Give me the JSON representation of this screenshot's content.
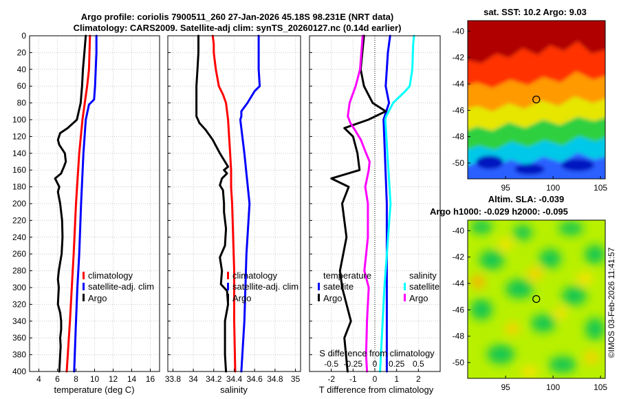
{
  "header": {
    "title_line1": "Argo profile: coriolis 7900511_260 27-Jan-2026 45.18S 98.231E (NRT data)",
    "title_line2": "Climatology: CARS2009. Satellite-adj clim: synTS_20260127.nc (0.14d earlier)"
  },
  "colors": {
    "climatology": "#ff0000",
    "satellite": "#0000ff",
    "argo": "#000000",
    "salinity_satellite": "#00ffff",
    "salinity_argo": "#ff00ff"
  },
  "chart_data": [
    {
      "type": "line",
      "id": "temperature",
      "xlabel": "temperature (deg C)",
      "ylabel": "",
      "xlim": [
        3,
        17
      ],
      "ylim": [
        400,
        0
      ],
      "xticks": [
        "4",
        "6",
        "8",
        "10",
        "12",
        "14",
        "16"
      ],
      "yticks": [
        "0",
        "20",
        "40",
        "60",
        "80",
        "100",
        "120",
        "140",
        "160",
        "180",
        "200",
        "220",
        "240",
        "260",
        "280",
        "300",
        "320",
        "340",
        "360",
        "380",
        "400"
      ],
      "grid": true,
      "legend": [
        "climatology",
        "satellite-adj. clim",
        "Argo"
      ],
      "series": [
        {
          "name": "climatology",
          "color": "#ff0000",
          "depth": [
            0,
            40,
            60,
            80,
            100,
            140,
            200,
            260,
            300,
            340,
            400
          ],
          "values": [
            9.5,
            9.4,
            9.2,
            8.95,
            8.7,
            8.35,
            8.0,
            7.75,
            7.55,
            7.35,
            7.0
          ]
        },
        {
          "name": "satellite-adj. clim",
          "color": "#0000ff",
          "depth": [
            0,
            20,
            60,
            76,
            82,
            100,
            140,
            200,
            260,
            300,
            340,
            400
          ],
          "values": [
            10.2,
            10.2,
            10.05,
            9.95,
            9.4,
            9.05,
            8.8,
            8.55,
            8.35,
            8.15,
            8.0,
            7.8
          ]
        },
        {
          "name": "Argo",
          "color": "#000000",
          "depth": [
            0,
            20,
            40,
            60,
            80,
            100,
            110,
            116,
            124,
            130,
            140,
            150,
            156,
            160,
            164,
            170,
            180,
            186,
            200,
            210,
            220,
            240,
            260,
            270,
            280,
            290,
            300,
            310,
            320,
            330,
            340,
            350,
            360,
            370,
            380,
            390,
            400
          ],
          "values": [
            9.05,
            8.9,
            8.75,
            8.65,
            8.5,
            8.1,
            7.1,
            6.3,
            6.05,
            6.2,
            6.8,
            6.9,
            6.7,
            6.55,
            6.4,
            5.75,
            6.2,
            6.05,
            6.3,
            6.4,
            6.5,
            6.55,
            6.45,
            6.3,
            6.15,
            6.05,
            6.15,
            6.1,
            6.05,
            6.3,
            6.4,
            6.4,
            6.3,
            6.35,
            6.3,
            6.25,
            6.2
          ]
        }
      ]
    },
    {
      "type": "line",
      "id": "salinity",
      "xlabel": "salinity",
      "ylabel": "",
      "xlim": [
        33.75,
        35.05
      ],
      "ylim": [
        400,
        0
      ],
      "xticks": [
        "33.8",
        "34",
        "34.2",
        "34.4",
        "34.6",
        "34.8",
        "35"
      ],
      "grid": true,
      "legend": [
        "climatology",
        "satellite-adj. clim",
        "Argo"
      ],
      "series": [
        {
          "name": "climatology",
          "color": "#ff0000",
          "depth": [
            0,
            10,
            20,
            40,
            60,
            70,
            80,
            100,
            120,
            140,
            160,
            180,
            200,
            240,
            280,
            300,
            340,
            400
          ],
          "values": [
            34.19,
            34.2,
            34.2,
            34.22,
            34.25,
            34.29,
            34.32,
            34.34,
            34.35,
            34.36,
            34.37,
            34.37,
            34.38,
            34.39,
            34.4,
            34.4,
            34.4,
            34.41
          ]
        },
        {
          "name": "satellite-adj. clim",
          "color": "#0000ff",
          "depth": [
            0,
            20,
            40,
            60,
            66,
            80,
            90,
            96,
            100,
            140,
            200,
            260,
            300,
            340,
            400
          ],
          "values": [
            34.64,
            34.64,
            34.64,
            34.65,
            34.6,
            34.53,
            34.47,
            34.47,
            34.46,
            34.5,
            34.55,
            34.52,
            34.51,
            34.5,
            34.47
          ]
        },
        {
          "name": "Argo",
          "color": "#000000",
          "depth": [
            0,
            20,
            40,
            60,
            80,
            96,
            104,
            112,
            124,
            140,
            150,
            156,
            160,
            164,
            170,
            178,
            184,
            200,
            210,
            230,
            250,
            264,
            280,
            296,
            304,
            320,
            340,
            360,
            380,
            400
          ],
          "values": [
            34.05,
            34.05,
            34.04,
            34.03,
            34.03,
            34.03,
            34.06,
            34.12,
            34.19,
            34.26,
            34.31,
            34.34,
            34.3,
            34.33,
            34.28,
            34.26,
            34.29,
            34.3,
            34.3,
            34.32,
            34.31,
            34.26,
            34.28,
            34.27,
            34.33,
            34.34,
            34.31,
            34.31,
            34.31,
            34.32
          ]
        }
      ]
    },
    {
      "type": "line",
      "id": "difference",
      "xlabel": "T difference from climatology",
      "xlabel_top": "S difference from climatology",
      "xlim": [
        -3,
        3
      ],
      "ylim": [
        400,
        0
      ],
      "xticks": [
        "-2",
        "-1",
        "0",
        "1",
        "2"
      ],
      "xticks_top": [
        "-0.5",
        "-0.25",
        "0",
        "0.25",
        "0.5"
      ],
      "grid": true,
      "legend_headers": [
        "temperature",
        "salinity"
      ],
      "legend_left": [
        "satellite",
        "Argo"
      ],
      "legend_right": [
        "satellite",
        "Argo"
      ],
      "series": [
        {
          "name": "temperature satellite",
          "color": "#0000ff",
          "depth": [
            0,
            20,
            60,
            80,
            100,
            200,
            300,
            400
          ],
          "values": [
            0.7,
            0.6,
            0.5,
            0.65,
            0.4,
            0.55,
            0.55,
            0.55
          ]
        },
        {
          "name": "temperature Argo",
          "color": "#000000",
          "depth": [
            0,
            40,
            60,
            80,
            90,
            100,
            110,
            120,
            140,
            160,
            170,
            180,
            200,
            240,
            280,
            300,
            340,
            360,
            400
          ],
          "values": [
            -0.5,
            -0.65,
            -0.5,
            -0.1,
            0.5,
            -0.3,
            -1.4,
            -1.0,
            -0.8,
            -0.7,
            -2.0,
            -1.2,
            -1.5,
            -1.3,
            -1.6,
            -1.5,
            -1.1,
            -1.4,
            -1.25
          ]
        },
        {
          "name": "salinity satellite",
          "color": "#00ffff",
          "depth": [
            0,
            10,
            40,
            60,
            66,
            80,
            96,
            100,
            200,
            300,
            400
          ],
          "values": [
            0.45,
            0.44,
            0.43,
            0.4,
            0.35,
            0.21,
            0.13,
            0.12,
            0.18,
            0.11,
            0.06
          ]
        },
        {
          "name": "salinity Argo",
          "color": "#ff00ff",
          "depth": [
            0,
            40,
            60,
            80,
            96,
            104,
            112,
            124,
            140,
            150,
            160,
            170,
            180,
            200,
            240,
            280,
            300,
            340,
            380,
            400
          ],
          "values": [
            -0.14,
            -0.17,
            -0.22,
            -0.29,
            -0.31,
            -0.28,
            -0.23,
            -0.16,
            -0.1,
            -0.06,
            -0.07,
            -0.09,
            -0.11,
            -0.08,
            -0.08,
            -0.12,
            -0.07,
            -0.09,
            -0.1,
            -0.09
          ]
        }
      ]
    },
    {
      "type": "heatmap",
      "id": "sst_map",
      "title": "sat. SST: 10.2 Argo: 9.03",
      "xlim": [
        91,
        105.5
      ],
      "ylim": [
        -51.2,
        -39.2
      ],
      "xticks": [
        "95",
        "100",
        "105"
      ],
      "yticks": [
        "-40",
        "-42",
        "-44",
        "-46",
        "-48",
        "-50"
      ],
      "marker": {
        "lon": 98.231,
        "lat": -45.18
      },
      "colormap": "jet"
    },
    {
      "type": "heatmap",
      "id": "sla_map",
      "title": "Altim. SLA: -0.039",
      "subtitle": "Argo h1000: -0.029 h2000: -0.095",
      "xlim": [
        91,
        105.5
      ],
      "ylim": [
        -51.2,
        -39.2
      ],
      "xticks": [
        "95",
        "100",
        "105"
      ],
      "yticks": [
        "-40",
        "-42",
        "-44",
        "-46",
        "-48",
        "-50"
      ],
      "marker": {
        "lon": 98.231,
        "lat": -45.18
      },
      "colormap": "jet"
    }
  ],
  "footer": {
    "stamp": "©IMOS 03-Feb-2026 11:41:57"
  }
}
